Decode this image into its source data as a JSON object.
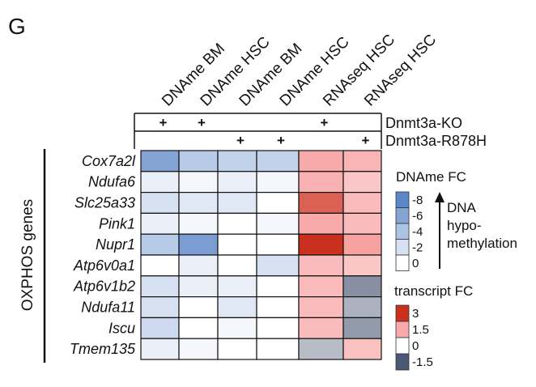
{
  "chart_data": {
    "type": "heatmap",
    "panel_label": "G",
    "columns": [
      "DNAme BM",
      "DNAme HSC",
      "DNAme BM",
      "DNAme HSC",
      "RNAseq HSC",
      "RNAseq HSC"
    ],
    "conditions": [
      {
        "name": "Dnmt3a-KO",
        "marks": [
          "+",
          "+",
          "",
          "",
          "+",
          ""
        ]
      },
      {
        "name": "Dnmt3a-R878H",
        "marks": [
          "",
          "",
          "+",
          "+",
          "",
          "+"
        ]
      }
    ],
    "row_group_label": "OXPHOS genes",
    "rows": [
      "Cox7a2l",
      "Ndufa6",
      "Slc25a33",
      "Pink1",
      "Nupr1",
      "Atp6v0a1",
      "Atp6v1b2",
      "Ndufa11",
      "Iscu",
      "Tmem135"
    ],
    "dname_fc": [
      [
        -6,
        -3.5,
        -3,
        -3
      ],
      [
        -1,
        -0.5,
        -1,
        -0.5
      ],
      [
        -2,
        -1.5,
        -1.5,
        0
      ],
      [
        -1,
        -0.5,
        0,
        -0.5
      ],
      [
        -3.5,
        -6.5,
        0,
        0
      ],
      [
        0,
        -1,
        0,
        -2
      ],
      [
        -2,
        -1,
        -1,
        0
      ],
      [
        -2,
        0,
        -1.5,
        0
      ],
      [
        -2.5,
        0,
        -0.5,
        0
      ],
      [
        -1,
        -0.5,
        0,
        0
      ]
    ],
    "transcript_fc": [
      [
        1.5,
        1.3
      ],
      [
        1.4,
        1.0
      ],
      [
        2.4,
        1.2
      ],
      [
        1.5,
        1.2
      ],
      [
        3,
        1.6
      ],
      [
        1.2,
        1.0
      ],
      [
        1.2,
        -1.0
      ],
      [
        1.2,
        -0.7
      ],
      [
        1.2,
        -0.9
      ],
      [
        -0.6,
        1.1
      ]
    ],
    "legends": {
      "dname": {
        "title": "DNAme FC",
        "ticks": [
          "-8",
          "-6",
          "-4",
          "-2",
          "0"
        ],
        "range": [
          -8,
          0
        ],
        "annotation": [
          "DNA",
          "hypo-",
          "methylation"
        ]
      },
      "transcript": {
        "title": "transcript FC",
        "ticks": [
          "3",
          "1.5",
          "0",
          "-1.5"
        ],
        "range": [
          -1.5,
          3
        ]
      }
    },
    "colors": {
      "blue_max": "#5b86c8",
      "red_max": "#c9301d",
      "neg_max": "#4a5873",
      "zero": "#ffffff",
      "grid": "#111111"
    }
  }
}
